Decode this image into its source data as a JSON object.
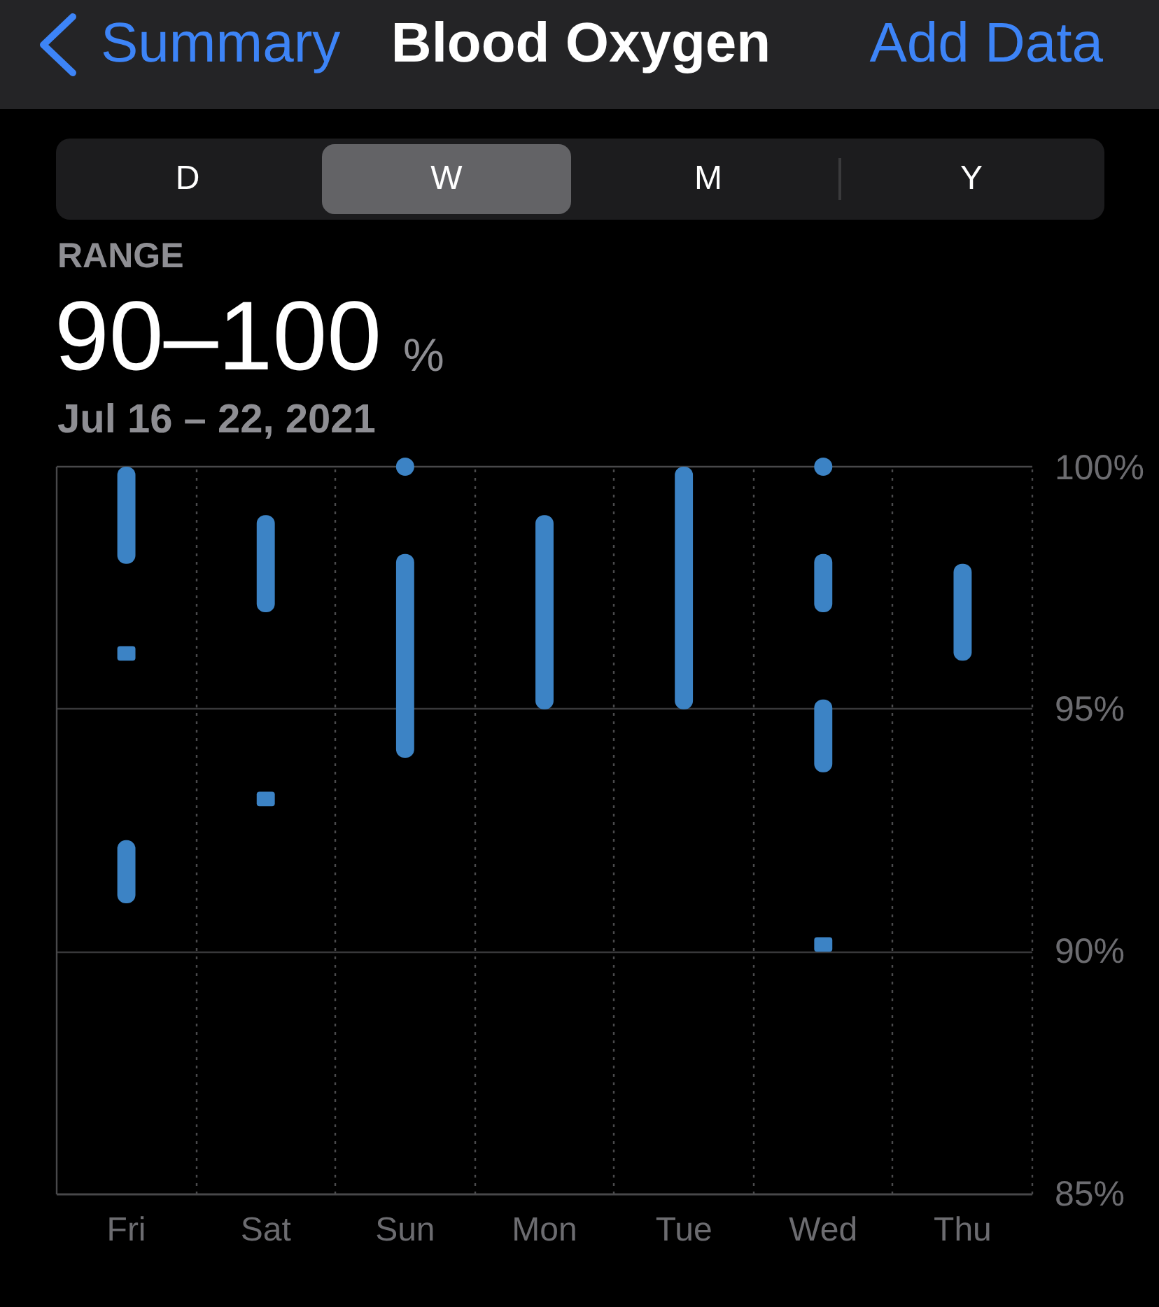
{
  "chart_data": {
    "type": "bar",
    "title": "Blood Oxygen",
    "annotations": [
      "Summary",
      "Add Data",
      "D",
      "W",
      "M",
      "Y",
      "RANGE",
      "90–100",
      "%",
      "Jul 16 – 22, 2021"
    ],
    "categories": [
      "Fri",
      "Sat",
      "Sun",
      "Mon",
      "Tue",
      "Wed",
      "Thu"
    ],
    "series": [
      {
        "color": "#3c83c5",
        "base": [
          98,
          97,
          94,
          95,
          95,
          97,
          96
        ],
        "values": [
          2,
          2,
          4.2,
          4,
          5,
          1.2,
          2
        ]
      },
      {
        "color": "#3c83c5",
        "base": [
          96,
          93,
          null,
          null,
          null,
          93.7,
          null
        ],
        "values": [
          0.3,
          0.3,
          null,
          null,
          null,
          1.5,
          null
        ]
      },
      {
        "color": "#3c83c5",
        "base": [
          91,
          null,
          null,
          null,
          null,
          90,
          null
        ],
        "values": [
          1.3,
          null,
          null,
          null,
          null,
          0.3,
          null
        ]
      },
      {
        "type": "scatter",
        "color": "#3c83c5",
        "marker": "circle",
        "x": [
          "Sun",
          "Wed"
        ],
        "values": [
          100,
          100
        ]
      }
    ],
    "ylim": [
      85,
      100
    ],
    "yticks": [
      {
        "value": 85,
        "label": "85%"
      },
      {
        "value": 90,
        "label": "90%"
      },
      {
        "value": 95,
        "label": "95%"
      },
      {
        "value": 100,
        "label": "100%"
      }
    ],
    "grid": true
  }
}
